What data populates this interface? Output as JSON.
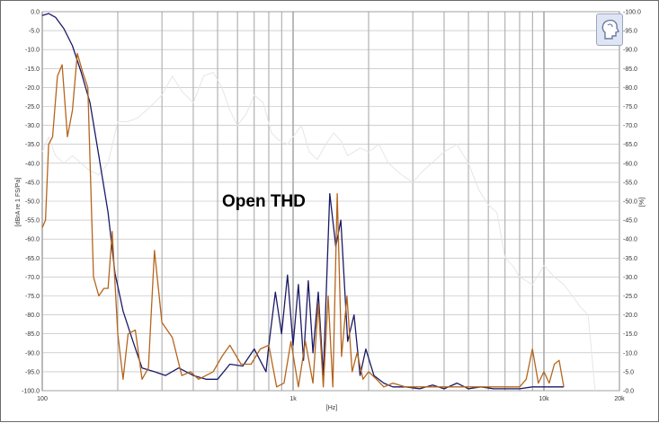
{
  "chart_data": {
    "type": "line",
    "annotation": "Open THD",
    "xlabel": "[Hz]",
    "ylabel_left": "[dBrA re 1 FS/Pa]",
    "ylabel_right": "[%]",
    "x_scale": "log",
    "xlim": [
      100,
      20000
    ],
    "ylim_left": [
      -100,
      0
    ],
    "ylim_right": [
      0,
      100
    ],
    "x_ticks": [
      {
        "value": 100,
        "label": "100"
      },
      {
        "value": 1000,
        "label": "1k"
      },
      {
        "value": 10000,
        "label": "10k"
      },
      {
        "value": 20000,
        "label": "20k"
      }
    ],
    "y_ticks_left": [
      "0.0",
      "-5.0",
      "-10.0",
      "-15.0",
      "-20.0",
      "-25.0",
      "-30.0",
      "-35.0",
      "-40.0",
      "-45.0",
      "-50.0",
      "-55.0",
      "-60.0",
      "-65.0",
      "-70.0",
      "-75.0",
      "-80.0",
      "-85.0",
      "-90.0",
      "-95.0",
      "-100.0"
    ],
    "y_ticks_right": [
      "100.0",
      "95.0",
      "90.0",
      "85.0",
      "80.0",
      "75.0",
      "70.0",
      "65.0",
      "60.0",
      "55.0",
      "50.0",
      "45.0",
      "40.0",
      "35.0",
      "30.0",
      "25.0",
      "20.0",
      "15.0",
      "10.0",
      "5.0",
      "0.0"
    ],
    "grid": true,
    "colors": {
      "navy": "#1a1a66",
      "orange": "#b5651d",
      "light": "#e6e6e6",
      "grid": "#8c8c8c"
    },
    "series": [
      {
        "axis": "left",
        "color": "#1a1a66",
        "x": [
          100,
          106,
          113,
          122,
          132,
          143,
          155,
          168,
          183,
          195,
          210,
          230,
          250,
          280,
          310,
          350,
          400,
          450,
          500,
          560,
          630,
          700,
          780,
          800,
          850,
          900,
          950,
          1000,
          1050,
          1100,
          1150,
          1200,
          1260,
          1320,
          1400,
          1480,
          1550,
          1650,
          1750,
          1850,
          1950,
          2100,
          2300,
          2500,
          2800,
          3200,
          3600,
          4000,
          4500,
          5000,
          5600,
          6300,
          7100,
          8000,
          9000,
          10000,
          11000,
          12000
        ],
        "y": [
          -1,
          -0.5,
          -1.5,
          -4.5,
          -9,
          -16,
          -24,
          -38,
          -53,
          -69,
          -79,
          -87,
          -94,
          -95,
          -96,
          -94,
          -96,
          -97,
          -97,
          -93,
          -93.5,
          -89,
          -95,
          -88,
          -74,
          -85,
          -69.5,
          -88,
          -72,
          -92,
          -71,
          -90,
          -74,
          -96,
          -48,
          -62,
          -55,
          -87,
          -80,
          -96,
          -89,
          -96,
          -98,
          -99,
          -99,
          -99.5,
          -98.5,
          -99.5,
          -98,
          -99.5,
          -99,
          -99.5,
          -99.5,
          -99.5,
          -99,
          -99,
          -99,
          -99
        ]
      },
      {
        "axis": "left",
        "color": "#b5651d",
        "x": [
          100,
          103,
          106,
          110,
          115,
          120,
          126,
          132,
          138,
          145,
          152,
          160,
          168,
          176,
          183,
          190,
          200,
          210,
          220,
          235,
          250,
          265,
          280,
          300,
          330,
          360,
          390,
          420,
          450,
          480,
          520,
          560,
          620,
          680,
          740,
          800,
          860,
          920,
          980,
          1050,
          1120,
          1200,
          1260,
          1320,
          1380,
          1440,
          1500,
          1560,
          1640,
          1720,
          1800,
          1900,
          2000,
          2150,
          2300,
          2500,
          2800,
          3200,
          3600,
          4000,
          4500,
          5000,
          5500,
          6000,
          6500,
          7000,
          7500,
          8000,
          8500,
          9000,
          9500,
          10000,
          10500,
          11000,
          11500,
          12000
        ],
        "y": [
          -57,
          -55,
          -35,
          -33,
          -17,
          -14,
          -33,
          -26,
          -11,
          -16,
          -20,
          -70,
          -75,
          -73,
          -73,
          -58,
          -85,
          -97,
          -85,
          -84,
          -97,
          -94,
          -63,
          -82,
          -86,
          -96,
          -95,
          -97,
          -96,
          -95,
          -91,
          -88,
          -93,
          -93,
          -89,
          -88,
          -99,
          -98,
          -87,
          -99,
          -87,
          -98,
          -77,
          -99,
          -75,
          -99,
          -48,
          -91,
          -75,
          -95,
          -90,
          -97,
          -95,
          -97,
          -99,
          -98,
          -99,
          -99,
          -99,
          -99,
          -99,
          -99,
          -99,
          -99,
          -99,
          -99,
          -99,
          -99,
          -97,
          -89,
          -98,
          -95,
          -98,
          -93,
          -92,
          -99
        ]
      },
      {
        "axis": "right",
        "color": "#e6e6e6",
        "x": [
          100,
          106,
          113,
          122,
          132,
          143,
          155,
          168,
          183,
          200,
          220,
          240,
          260,
          280,
          300,
          330,
          360,
          400,
          440,
          480,
          520,
          560,
          600,
          650,
          700,
          760,
          820,
          880,
          950,
          1000,
          1080,
          1160,
          1250,
          1350,
          1450,
          1550,
          1650,
          1750,
          1850,
          2000,
          2200,
          2400,
          2700,
          3000,
          3300,
          3700,
          4000,
          4500,
          5000,
          5500,
          6000,
          6500,
          7000,
          7500,
          8000,
          9000,
          10000,
          11000,
          12000,
          13000,
          14000,
          15000,
          16000
        ],
        "y": [
          63,
          67,
          62,
          60,
          62,
          60,
          58,
          57,
          60,
          71,
          71,
          72,
          74,
          76,
          78,
          83,
          79,
          76,
          83,
          84,
          80,
          74,
          70,
          73,
          78,
          76,
          68,
          66,
          65,
          67,
          70,
          63,
          61,
          65,
          68,
          66,
          62,
          63,
          64,
          63,
          65,
          60,
          57,
          55,
          58,
          61,
          63,
          65,
          60,
          53,
          49,
          47,
          35,
          33,
          30,
          28,
          33,
          30,
          28,
          25,
          22,
          20,
          0
        ]
      }
    ]
  }
}
